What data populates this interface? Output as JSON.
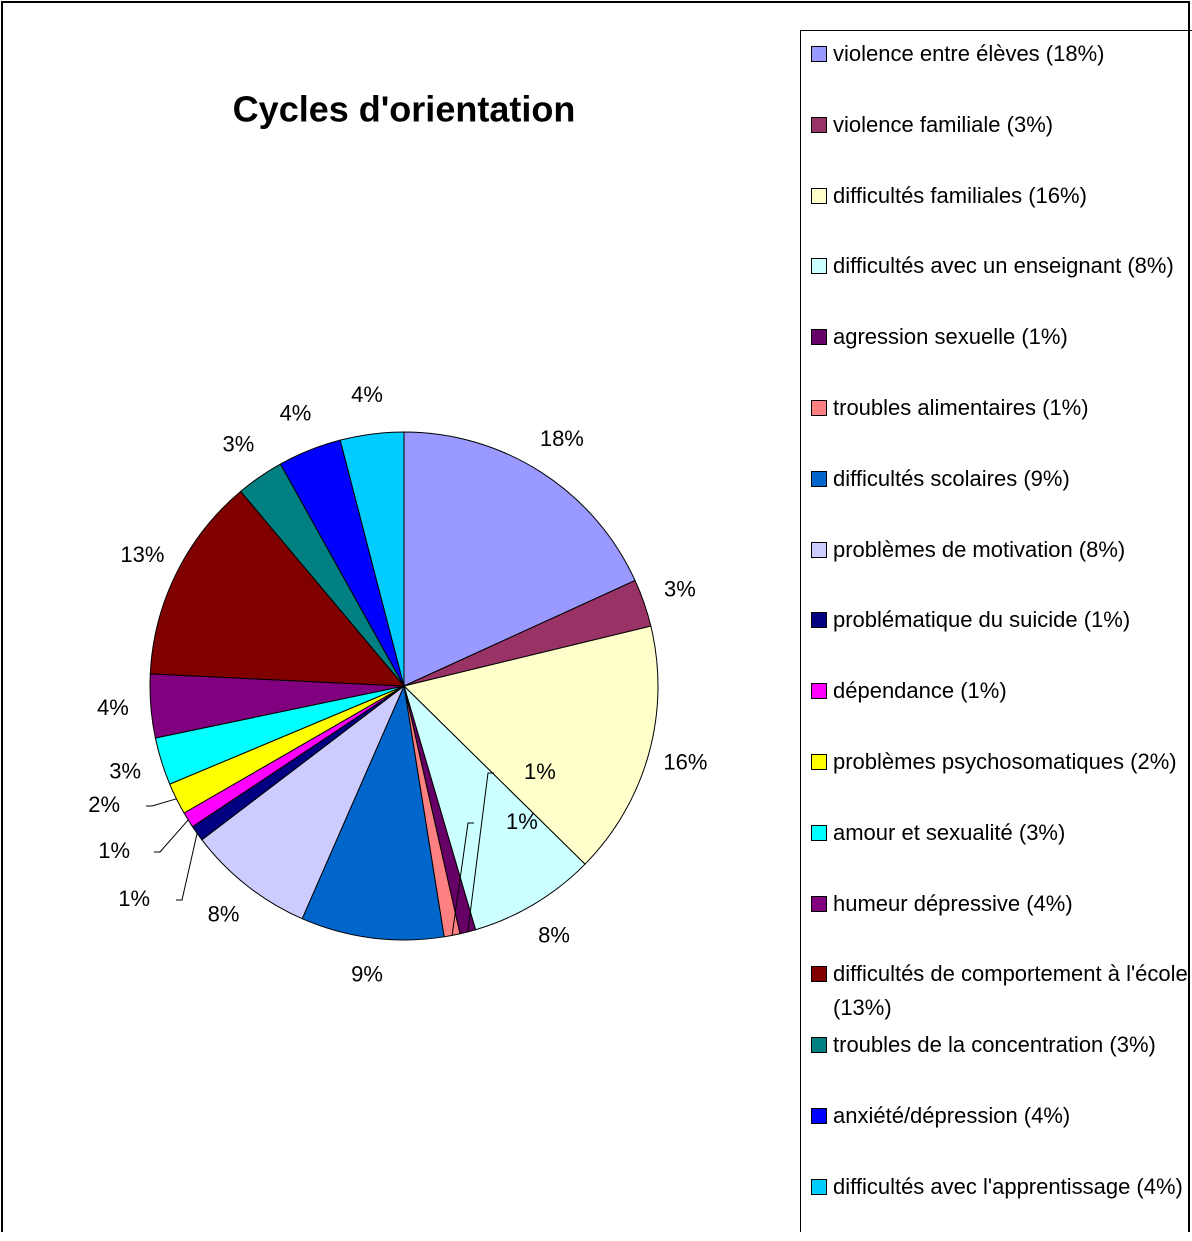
{
  "chart_data": {
    "type": "pie",
    "title": "Cycles d'orientation",
    "categories": [
      "violence entre élèves (18%)",
      "violence familiale (3%)",
      "difficultés familiales (16%)",
      "difficultés avec un enseignant (8%)",
      "agression sexuelle (1%)",
      "troubles alimentaires (1%)",
      "difficultés scolaires (9%)",
      "problèmes de motivation (8%)",
      "problématique du suicide (1%)",
      "dépendance (1%)",
      "problèmes psychosomatiques (2%)",
      "amour et sexualité (3%)",
      "humeur dépressive (4%)",
      "difficultés de comportement à l'école (13%)",
      "troubles de la concentration (3%)",
      "anxiété/dépression (4%)",
      "difficultés avec l'apprentissage (4%)"
    ],
    "values": [
      18,
      3,
      16,
      8,
      1,
      1,
      9,
      8,
      1,
      1,
      2,
      3,
      4,
      13,
      3,
      4,
      4
    ],
    "value_labels": [
      "18%",
      "3%",
      "16%",
      "8%",
      "1%",
      "1%",
      "9%",
      "8%",
      "1%",
      "1%",
      "2%",
      "3%",
      "4%",
      "13%",
      "3%",
      "4%",
      "4%"
    ],
    "colors": [
      "#9999FF",
      "#993366",
      "#FFFFCC",
      "#CCFFFF",
      "#660066",
      "#FF8080",
      "#0066CC",
      "#CCCCFF",
      "#000080",
      "#FF00FF",
      "#FFFF00",
      "#00FFFF",
      "#800080",
      "#800000",
      "#008080",
      "#0000FF",
      "#00CCFF"
    ],
    "legend": "right"
  }
}
